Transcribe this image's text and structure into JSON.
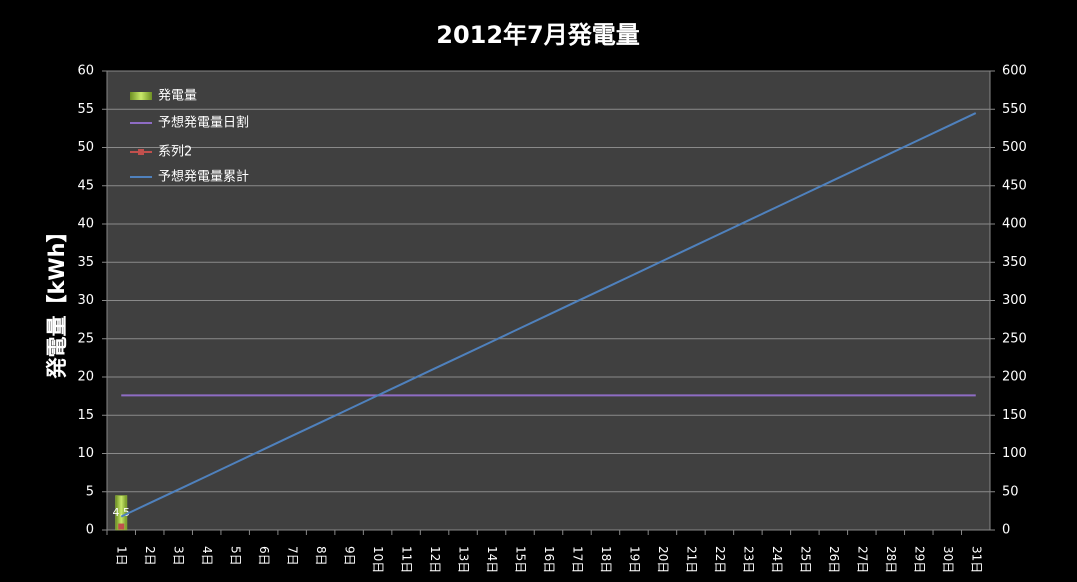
{
  "chart_data": {
    "type": "combo",
    "title": "2012年7月発電量",
    "y_label": "発電量【kWh】",
    "categories": [
      "1日",
      "2日",
      "3日",
      "4日",
      "5日",
      "6日",
      "7日",
      "8日",
      "9日",
      "10日",
      "11日",
      "12日",
      "13日",
      "14日",
      "15日",
      "16日",
      "17日",
      "18日",
      "19日",
      "20日",
      "21日",
      "22日",
      "23日",
      "24日",
      "25日",
      "26日",
      "27日",
      "28日",
      "29日",
      "30日",
      "31日"
    ],
    "ylim": [
      0,
      60
    ],
    "yticks": [
      0,
      5,
      10,
      15,
      20,
      25,
      30,
      35,
      40,
      45,
      50,
      55,
      60
    ],
    "y2lim": [
      0,
      600
    ],
    "y2ticks": [
      0,
      50,
      100,
      150,
      200,
      250,
      300,
      350,
      400,
      450,
      500,
      550,
      600
    ],
    "grid": true,
    "legend": "upper left",
    "series": [
      {
        "name": "発電量",
        "type": "bar",
        "color": "#9bc43a",
        "data_labels": true,
        "values": [
          4.5,
          null,
          null,
          null,
          null,
          null,
          null,
          null,
          null,
          null,
          null,
          null,
          null,
          null,
          null,
          null,
          null,
          null,
          null,
          null,
          null,
          null,
          null,
          null,
          null,
          null,
          null,
          null,
          null,
          null,
          null
        ]
      },
      {
        "name": "予想発電量日割",
        "type": "line",
        "color": "#8e6cc4",
        "values": [
          17.6,
          17.6,
          17.6,
          17.6,
          17.6,
          17.6,
          17.6,
          17.6,
          17.6,
          17.6,
          17.6,
          17.6,
          17.6,
          17.6,
          17.6,
          17.6,
          17.6,
          17.6,
          17.6,
          17.6,
          17.6,
          17.6,
          17.6,
          17.6,
          17.6,
          17.6,
          17.6,
          17.6,
          17.6,
          17.6,
          17.6
        ]
      },
      {
        "name": "系列2",
        "type": "line",
        "axis": "y2",
        "color": "#c0504d",
        "marker": true,
        "values": [
          4.5,
          null,
          null,
          null,
          null,
          null,
          null,
          null,
          null,
          null,
          null,
          null,
          null,
          null,
          null,
          null,
          null,
          null,
          null,
          null,
          null,
          null,
          null,
          null,
          null,
          null,
          null,
          null,
          null,
          null,
          null
        ]
      },
      {
        "name": "予想発電量累計",
        "type": "line",
        "axis": "y2",
        "color": "#4f81bd",
        "values": [
          17.6,
          35.2,
          52.7,
          70.3,
          87.9,
          105.5,
          123.1,
          140.6,
          158.2,
          175.8,
          193.4,
          211.0,
          228.5,
          246.1,
          263.7,
          281.3,
          298.9,
          316.4,
          334.0,
          351.6,
          369.2,
          386.8,
          404.3,
          421.9,
          439.5,
          457.1,
          474.7,
          492.2,
          509.8,
          527.4,
          545.0
        ]
      }
    ]
  }
}
